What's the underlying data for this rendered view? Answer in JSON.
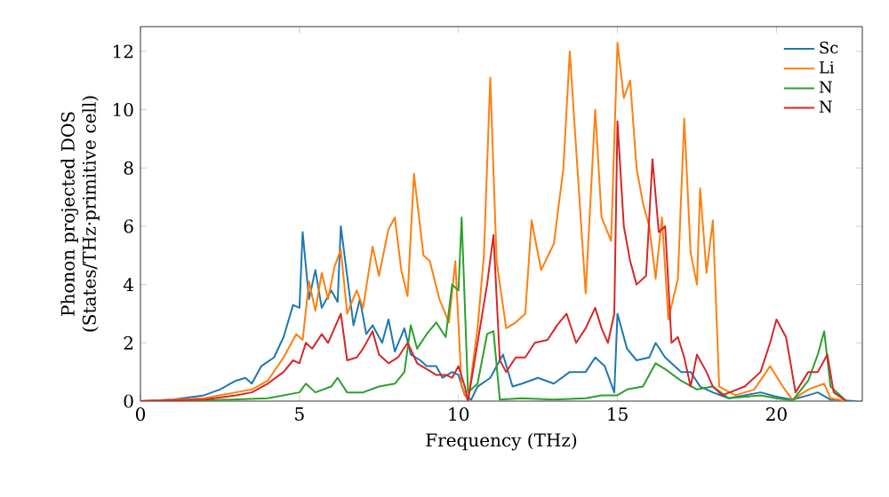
{
  "chart_data": {
    "type": "line",
    "xlabel": "Frequency (THz)",
    "ylabel": "Phonon projected DOS (States/THz·primitive cell)",
    "xlim": [
      0,
      22.7
    ],
    "ylim": [
      0,
      12.85
    ],
    "xticks": [
      0,
      5,
      10,
      15,
      20
    ],
    "yticks": [
      0,
      2,
      4,
      6,
      8,
      10,
      12
    ],
    "grid": false,
    "legend": "top right",
    "marker": "none",
    "line_style": "solid",
    "series": [
      {
        "name": "Sc",
        "color": "#1f77b4",
        "x": [
          0,
          1,
          2,
          2.5,
          3,
          3.3,
          3.5,
          3.8,
          4.2,
          4.5,
          4.8,
          5.0,
          5.1,
          5.3,
          5.5,
          5.7,
          6.0,
          6.2,
          6.3,
          6.5,
          6.7,
          6.9,
          7.1,
          7.3,
          7.6,
          7.8,
          8.0,
          8.3,
          8.5,
          8.8,
          9.0,
          9.3,
          9.5,
          9.8,
          10.0,
          10.2,
          10.4,
          10.6,
          11,
          11.4,
          11.7,
          12,
          12.5,
          13,
          13.5,
          14,
          14.3,
          14.6,
          14.9,
          15.0,
          15.3,
          15.6,
          16,
          16.2,
          16.5,
          17,
          17.3,
          17.6,
          18,
          18.5,
          19.5,
          20,
          20.5,
          21,
          21.3,
          21.7,
          22.5
        ],
        "values": [
          0,
          0.05,
          0.2,
          0.4,
          0.7,
          0.8,
          0.6,
          1.2,
          1.5,
          2.2,
          3.3,
          3.2,
          5.8,
          3.5,
          4.5,
          3.2,
          3.8,
          3.4,
          6.0,
          4.3,
          2.6,
          3.5,
          2.3,
          2.6,
          2.0,
          2.8,
          1.7,
          2.5,
          1.6,
          1.4,
          1.2,
          1.2,
          0.8,
          1.0,
          0.9,
          0.2,
          0.05,
          0.5,
          0.8,
          1.6,
          0.5,
          0.6,
          0.8,
          0.6,
          1.0,
          1.0,
          1.5,
          1.2,
          0.3,
          3.0,
          1.8,
          1.4,
          1.5,
          2.0,
          1.5,
          1.0,
          1.0,
          0.5,
          0.3,
          0.1,
          0.3,
          0.15,
          0.05,
          0.2,
          0.3,
          0.05,
          0
        ]
      },
      {
        "name": "Li",
        "color": "#ff7f0e",
        "x": [
          0,
          2,
          3,
          3.5,
          4,
          4.5,
          4.9,
          5.1,
          5.3,
          5.5,
          5.7,
          5.9,
          6.1,
          6.3,
          6.5,
          6.8,
          7.0,
          7.3,
          7.5,
          7.8,
          8.0,
          8.2,
          8.4,
          8.6,
          8.9,
          9.1,
          9.4,
          9.7,
          9.9,
          10.1,
          10.3,
          10.6,
          10.8,
          11.0,
          11.2,
          11.5,
          11.8,
          12.1,
          12.3,
          12.6,
          13.0,
          13.3,
          13.5,
          13.8,
          14.0,
          14.3,
          14.5,
          14.8,
          15.0,
          15.2,
          15.4,
          15.6,
          15.8,
          16.0,
          16.2,
          16.4,
          16.6,
          16.9,
          17.1,
          17.3,
          17.5,
          17.6,
          17.8,
          18.0,
          18.2,
          18.7,
          19.3,
          19.8,
          20.2,
          20.5,
          21,
          21.5,
          21.7,
          22.2
        ],
        "values": [
          0,
          0.1,
          0.3,
          0.4,
          0.7,
          1.5,
          2.3,
          2.1,
          4.1,
          3.1,
          4.4,
          3.5,
          4.6,
          5.2,
          3.0,
          3.8,
          3.2,
          5.3,
          4.3,
          5.9,
          6.3,
          4.5,
          3.6,
          7.8,
          5.0,
          4.8,
          3.5,
          2.7,
          4.8,
          0.5,
          0.0,
          2.5,
          5.0,
          11.1,
          4.8,
          2.5,
          2.7,
          3.0,
          6.2,
          4.5,
          5.4,
          8.0,
          12.0,
          7.0,
          3.7,
          10.0,
          6.3,
          5.5,
          12.3,
          10.4,
          11.0,
          8.0,
          6.8,
          6.0,
          4.2,
          6.3,
          2.8,
          4.2,
          9.7,
          5.1,
          4.0,
          7.3,
          4.4,
          6.2,
          0.5,
          0.2,
          0.4,
          1.2,
          0.5,
          0.05,
          0.4,
          0.6,
          0.1,
          0
        ]
      },
      {
        "name": "N",
        "color": "#2ca02c",
        "x": [
          0,
          2,
          4,
          5,
          5.2,
          5.5,
          6,
          6.2,
          6.5,
          7,
          7.5,
          8,
          8.3,
          8.5,
          8.7,
          9,
          9.3,
          9.6,
          9.8,
          10.0,
          10.1,
          10.3,
          10.6,
          10.9,
          11.1,
          11.3,
          12,
          13,
          14,
          14.5,
          15,
          15.3,
          15.8,
          16.2,
          16.5,
          17,
          17.5,
          18,
          18.5,
          19.5,
          20,
          20.5,
          21.0,
          21.3,
          21.5,
          21.7,
          22.2
        ],
        "values": [
          0,
          0.02,
          0.1,
          0.3,
          0.6,
          0.3,
          0.5,
          0.8,
          0.3,
          0.3,
          0.5,
          0.6,
          1.0,
          2.6,
          1.8,
          2.3,
          2.7,
          2.2,
          4.0,
          3.8,
          6.3,
          0.3,
          0.6,
          2.3,
          2.4,
          0.05,
          0.1,
          0.05,
          0.1,
          0.2,
          0.2,
          0.4,
          0.5,
          1.3,
          1.1,
          0.7,
          0.4,
          0.5,
          0.1,
          0.2,
          0.1,
          0.02,
          0.7,
          1.6,
          2.4,
          0.5,
          0
        ]
      },
      {
        "name": "N",
        "color": "#d62728",
        "x": [
          0,
          2,
          3,
          3.5,
          4,
          4.5,
          4.8,
          5.0,
          5.2,
          5.4,
          5.7,
          5.9,
          6.1,
          6.3,
          6.5,
          6.8,
          7.0,
          7.3,
          7.5,
          7.8,
          8.1,
          8.4,
          8.7,
          9.0,
          9.3,
          9.6,
          9.8,
          10.0,
          10.2,
          10.3,
          10.6,
          10.9,
          11.1,
          11.3,
          11.5,
          11.8,
          12.1,
          12.4,
          12.8,
          13.1,
          13.4,
          13.7,
          14.0,
          14.3,
          14.5,
          14.7,
          14.9,
          15.0,
          15.2,
          15.4,
          15.6,
          15.9,
          16.1,
          16.3,
          16.5,
          16.7,
          16.9,
          17.1,
          17.3,
          17.5,
          17.8,
          18.0,
          18.3,
          19.0,
          19.5,
          19.8,
          20.0,
          20.3,
          20.6,
          21.0,
          21.3,
          21.6,
          21.8,
          22.2
        ],
        "values": [
          0,
          0.05,
          0.2,
          0.3,
          0.6,
          1.0,
          1.4,
          1.3,
          2.0,
          1.8,
          2.3,
          2.0,
          2.5,
          3.0,
          1.4,
          1.5,
          1.8,
          2.4,
          1.6,
          1.3,
          1.5,
          2.0,
          1.3,
          1.1,
          0.9,
          0.9,
          0.8,
          1.2,
          0.5,
          0.0,
          2.0,
          4.0,
          5.7,
          1.4,
          1.0,
          1.5,
          1.5,
          2.0,
          2.1,
          2.6,
          3.0,
          2.0,
          2.5,
          3.2,
          2.5,
          2.0,
          3.0,
          9.6,
          6.0,
          4.8,
          4.0,
          4.3,
          8.3,
          5.8,
          6.0,
          2.0,
          2.2,
          1.5,
          0.5,
          1.6,
          1.0,
          0.5,
          0.2,
          0.5,
          1.0,
          2.0,
          2.8,
          2.2,
          0.3,
          1.0,
          1.0,
          1.6,
          0.3,
          0
        ]
      }
    ]
  }
}
